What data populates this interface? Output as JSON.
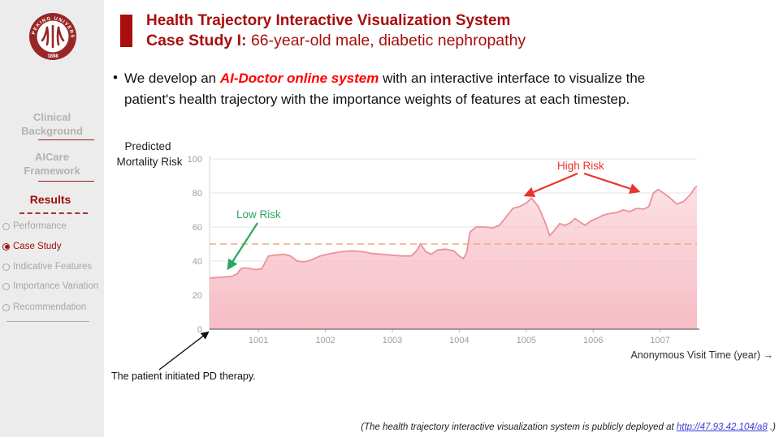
{
  "colors": {
    "brand_dark_red": "#a90d0d",
    "highlight_red": "#ff0000",
    "sidebar_bg": "#ececec",
    "sidebar_gray_text": "#b3b3b3",
    "chart_line": "#ef8f98",
    "chart_fill": "#f6b6c0",
    "threshold_orange": "#f4a77e",
    "low_risk_green": "#2ca75f",
    "high_risk_red": "#e8352c",
    "link_blue": "#3b3bd6"
  },
  "sidebar": {
    "logo": {
      "ring_text": "PEKING UNIVERSITY",
      "year": "1898"
    },
    "sections": [
      {
        "label_line1": "Clinical",
        "label_line2": "Background"
      },
      {
        "label_line1": "AICare",
        "label_line2": "Framework"
      }
    ],
    "results_heading": "Results",
    "nav_items": [
      {
        "label": "Performance",
        "selected": false
      },
      {
        "label": "Case Study",
        "selected": true
      },
      {
        "label": "Indicative Features",
        "selected": false
      },
      {
        "label": "Importance Variation",
        "selected": false
      },
      {
        "label": "Recommendation",
        "selected": false
      }
    ]
  },
  "header": {
    "title_line1": "Health Trajectory Interactive Visualization System",
    "title_line2_bold": "Case Study I:",
    "title_line2_rest": " 66-year-old male, diabetic nephropathy"
  },
  "bullet": {
    "marker": "•",
    "pre": "We develop an ",
    "highlight": "AI-Doctor online system",
    "post_line1": " with an interactive interface to visualize the",
    "line2": "patient's health trajectory with the importance weights of features at each timestep."
  },
  "chart_data": {
    "type": "area",
    "title": "",
    "ylabel_line1": "Predicted",
    "ylabel_line2": "Mortality Risk",
    "xlabel": "Anonymous Visit Time (year) →",
    "xlim": [
      1000.27,
      1007.55
    ],
    "ylim": [
      0,
      100
    ],
    "x_ticks": [
      1001,
      1002,
      1003,
      1004,
      1005,
      1006,
      1007
    ],
    "y_ticks": [
      0,
      20,
      40,
      60,
      80,
      100
    ],
    "grid": true,
    "threshold": {
      "value": 50,
      "style": "dashed"
    },
    "series": [
      {
        "name": "Predicted Mortality Risk",
        "x": [
          1000.27,
          1000.45,
          1000.6,
          1000.68,
          1000.74,
          1000.8,
          1000.88,
          1000.96,
          1001.05,
          1001.15,
          1001.25,
          1001.38,
          1001.48,
          1001.58,
          1001.68,
          1001.78,
          1001.92,
          1002.08,
          1002.25,
          1002.4,
          1002.55,
          1002.7,
          1002.85,
          1003.0,
          1003.15,
          1003.28,
          1003.36,
          1003.42,
          1003.5,
          1003.58,
          1003.68,
          1003.8,
          1003.92,
          1004.0,
          1004.06,
          1004.11,
          1004.16,
          1004.25,
          1004.38,
          1004.5,
          1004.6,
          1004.7,
          1004.8,
          1004.9,
          1005.0,
          1005.08,
          1005.18,
          1005.28,
          1005.35,
          1005.42,
          1005.5,
          1005.58,
          1005.66,
          1005.73,
          1005.8,
          1005.88,
          1005.96,
          1006.05,
          1006.15,
          1006.25,
          1006.35,
          1006.45,
          1006.55,
          1006.65,
          1006.75,
          1006.83,
          1006.9,
          1006.97,
          1007.05,
          1007.15,
          1007.25,
          1007.35,
          1007.45,
          1007.52,
          1007.55
        ],
        "y": [
          30,
          30.5,
          31,
          32.5,
          35.5,
          36,
          35.5,
          35,
          35.5,
          43,
          43.5,
          44,
          43,
          40,
          39.5,
          40.5,
          43,
          44.5,
          45.5,
          46,
          45.5,
          44.5,
          44,
          43.5,
          43,
          43,
          46,
          50,
          45.5,
          44,
          46.5,
          47,
          46,
          43,
          41.5,
          45,
          57,
          60,
          60,
          59.5,
          61,
          66,
          71,
          72,
          74,
          77,
          72,
          63,
          55,
          58,
          62,
          61,
          62.5,
          65,
          63,
          61,
          63.5,
          65,
          67,
          68,
          68.5,
          70,
          69,
          71,
          70.5,
          72,
          80,
          82,
          80,
          77,
          73.5,
          75,
          79,
          83,
          84
        ]
      }
    ],
    "annotations": [
      {
        "text": "Low Risk",
        "color": "#2ca75f",
        "points_to": {
          "x": 1000.55,
          "y": 33
        }
      },
      {
        "text": "High Risk",
        "color": "#e8352c",
        "points_to_left": {
          "x": 1005.05,
          "y": 78
        },
        "points_to_right": {
          "x": 1006.85,
          "y": 81
        }
      }
    ]
  },
  "notes": {
    "pd_note": "The patient initiated PD therapy.",
    "footer_pre": "(The health trajectory interactive visualization system is publicly deployed at ",
    "footer_link": "http://47.93.42.104/a8",
    "footer_post": " .)"
  }
}
